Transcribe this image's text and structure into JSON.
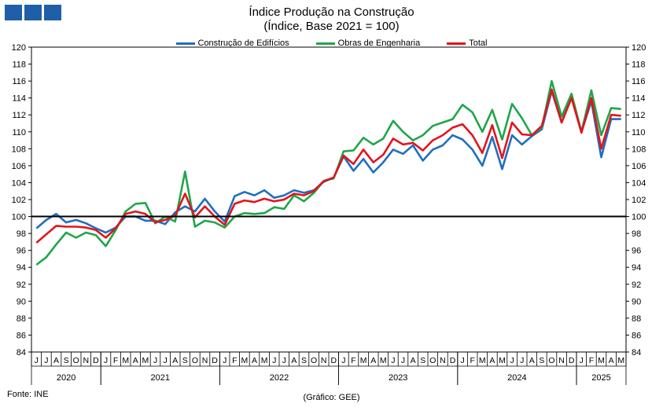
{
  "branding": {
    "logo_icon": "ine-logo-icon",
    "color": "#1f5fa8"
  },
  "chart_data": {
    "type": "line",
    "title": "Índice Produção na Construção",
    "subtitle": "(Índice, Base 2021 = 100)",
    "ylim": [
      84,
      120
    ],
    "yticks": [
      84,
      86,
      88,
      90,
      92,
      94,
      96,
      98,
      100,
      102,
      104,
      106,
      108,
      110,
      112,
      114,
      116,
      118,
      120
    ],
    "reference_line": 100,
    "legend_position": "top-center",
    "grid": false,
    "month_labels": [
      "J",
      "J",
      "A",
      "S",
      "O",
      "N",
      "D",
      "J",
      "F",
      "M",
      "A",
      "M",
      "J",
      "J",
      "A",
      "S",
      "O",
      "N",
      "D",
      "J",
      "F",
      "M",
      "A",
      "M",
      "J",
      "J",
      "A",
      "S",
      "O",
      "N",
      "D",
      "J",
      "F",
      "M",
      "A",
      "M",
      "J",
      "J",
      "A",
      "S",
      "O",
      "N",
      "D",
      "J",
      "F",
      "M",
      "A",
      "M",
      "J",
      "J",
      "A",
      "S",
      "O",
      "N",
      "D",
      "J",
      "F",
      "M",
      "A",
      "M"
    ],
    "years": [
      {
        "label": "2020",
        "start": 0,
        "count": 7
      },
      {
        "label": "2021",
        "start": 7,
        "count": 12
      },
      {
        "label": "2022",
        "start": 19,
        "count": 12
      },
      {
        "label": "2023",
        "start": 31,
        "count": 12
      },
      {
        "label": "2024",
        "start": 43,
        "count": 12
      },
      {
        "label": "2025",
        "start": 55,
        "count": 5
      }
    ],
    "series": [
      {
        "name": "Construção de Edifícios",
        "color": "#1f6fbf",
        "values": [
          98.6,
          99.6,
          100.3,
          99.3,
          99.6,
          99.2,
          98.6,
          98.1,
          98.7,
          100.0,
          100.0,
          99.5,
          99.5,
          99.1,
          100.5,
          101.2,
          100.6,
          102.1,
          100.6,
          99.4,
          102.4,
          102.9,
          102.5,
          103.1,
          102.2,
          102.5,
          103.1,
          102.8,
          103.1,
          104.1,
          104.6,
          107.1,
          105.4,
          106.8,
          105.2,
          106.4,
          107.9,
          107.4,
          108.4,
          106.6,
          107.9,
          108.4,
          109.6,
          109.1,
          107.9,
          106.0,
          109.4,
          105.6,
          109.6,
          108.5,
          109.5,
          110.3,
          114.8,
          111.1,
          114.1,
          110.0,
          113.6,
          107.0,
          111.5,
          111.5
        ]
      },
      {
        "name": "Obras de Engenharia",
        "color": "#1fa64a",
        "values": [
          94.3,
          95.2,
          96.7,
          98.1,
          97.5,
          98.1,
          97.8,
          96.5,
          98.4,
          100.6,
          101.5,
          101.6,
          99.2,
          100.0,
          99.4,
          105.3,
          98.8,
          99.5,
          99.3,
          98.7,
          100.0,
          100.4,
          100.3,
          100.4,
          101.1,
          100.9,
          102.5,
          101.8,
          102.8,
          104.2,
          104.5,
          107.7,
          107.8,
          109.3,
          108.5,
          109.2,
          111.3,
          110.0,
          109.0,
          109.6,
          110.7,
          111.1,
          111.5,
          113.2,
          112.3,
          110.0,
          112.6,
          109.1,
          113.3,
          111.6,
          109.6,
          110.5,
          116.0,
          111.8,
          114.5,
          110.0,
          114.9,
          109.6,
          112.8,
          112.7
        ]
      },
      {
        "name": "Total",
        "color": "#e3141b",
        "values": [
          96.9,
          97.9,
          98.9,
          98.8,
          98.8,
          98.7,
          98.4,
          97.5,
          98.6,
          100.3,
          100.6,
          100.3,
          99.3,
          99.6,
          100.1,
          102.7,
          99.9,
          101.2,
          100.0,
          99.0,
          101.5,
          101.9,
          101.7,
          102.1,
          101.8,
          102.0,
          102.7,
          102.5,
          103.0,
          104.2,
          104.6,
          107.2,
          106.2,
          107.9,
          106.4,
          107.3,
          109.2,
          108.5,
          108.7,
          107.8,
          109.0,
          109.6,
          110.5,
          110.9,
          109.6,
          107.5,
          110.8,
          106.9,
          111.1,
          109.7,
          109.6,
          110.7,
          115.0,
          111.1,
          114.0,
          109.9,
          114.0,
          108.0,
          112.0,
          111.9
        ]
      }
    ]
  },
  "footer": {
    "source": "Fonte: INE",
    "credit": "(Gráfico: GEE)"
  }
}
